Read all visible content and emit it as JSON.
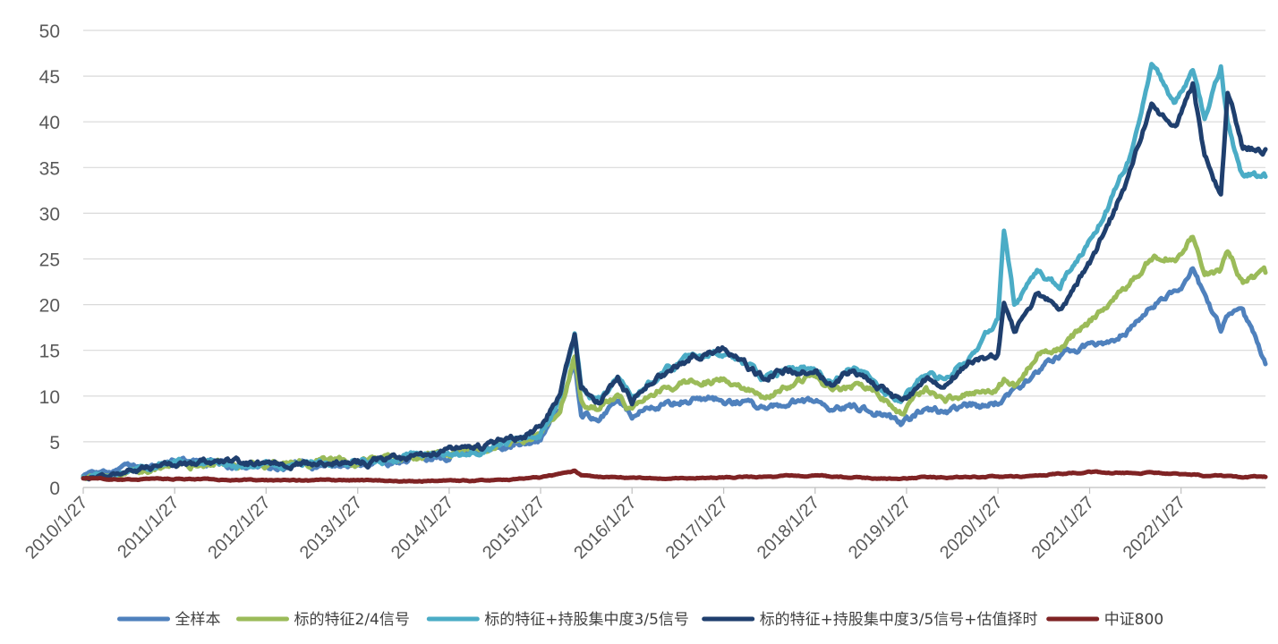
{
  "chart_data": {
    "type": "line",
    "title": "",
    "xlabel": "",
    "ylabel": "",
    "ylim": [
      0,
      50
    ],
    "y_ticks": [
      "0",
      "5",
      "10",
      "15",
      "20",
      "25",
      "30",
      "35",
      "40",
      "45",
      "50"
    ],
    "x_ticks": [
      "2010/1/27",
      "2011/1/27",
      "2012/1/27",
      "2013/1/27",
      "2014/1/27",
      "2015/1/27",
      "2016/1/27",
      "2017/1/27",
      "2018/1/27",
      "2019/1/27",
      "2020/1/27",
      "2021/1/27",
      "2022/1/27"
    ],
    "x_range": [
      "2010/1/27",
      "2022/12/30"
    ],
    "grid": "horizontal",
    "legend_position": "bottom",
    "x": [
      "2010/1/27",
      "2010/7/1",
      "2011/1/27",
      "2011/7/1",
      "2012/1/27",
      "2012/7/1",
      "2013/1/27",
      "2013/7/1",
      "2014/1/27",
      "2014/7/1",
      "2015/1/27",
      "2015/4/15",
      "2015/6/12",
      "2015/7/8",
      "2015/9/15",
      "2015/12/1",
      "2016/1/27",
      "2016/4/1",
      "2016/7/1",
      "2016/10/1",
      "2017/1/27",
      "2017/4/1",
      "2017/7/1",
      "2017/10/1",
      "2018/1/27",
      "2018/4/1",
      "2018/7/1",
      "2018/10/1",
      "2019/1/4",
      "2019/4/15",
      "2019/7/1",
      "2019/10/1",
      "2020/1/27",
      "2020/2/20",
      "2020/4/1",
      "2020/7/1",
      "2020/10/1",
      "2021/1/27",
      "2021/4/1",
      "2021/7/1",
      "2021/10/1",
      "2022/1/4",
      "2022/3/15",
      "2022/5/1",
      "2022/7/5",
      "2022/8/1",
      "2022/10/1",
      "2022/12/30"
    ],
    "series": [
      {
        "name": "全样本",
        "color": "#4f81bd",
        "values": [
          1.2,
          1.8,
          2.7,
          2.8,
          2.3,
          2.6,
          2.6,
          3.0,
          3.6,
          4.1,
          5.5,
          8.5,
          14.0,
          8.5,
          7.5,
          9.5,
          8.0,
          9.0,
          9.3,
          9.8,
          9.5,
          9.4,
          8.5,
          9.2,
          9.5,
          8.8,
          8.7,
          8.3,
          6.8,
          8.8,
          8.2,
          8.8,
          9.2,
          10.0,
          10.5,
          12.5,
          14.5,
          15.5,
          15.5,
          17.5,
          20.0,
          21.5,
          24.0,
          21.0,
          17.5,
          19.0,
          19.0,
          13.5
        ]
      },
      {
        "name": "标的特征2/4信号",
        "color": "#9bbb59",
        "values": [
          1.1,
          1.6,
          2.5,
          2.6,
          2.3,
          2.7,
          2.7,
          3.1,
          3.8,
          4.2,
          5.8,
          9.0,
          14.5,
          9.5,
          8.5,
          10.5,
          8.5,
          10.0,
          11.0,
          11.5,
          11.8,
          11.0,
          10.0,
          11.0,
          12.3,
          10.5,
          11.0,
          10.5,
          8.2,
          10.5,
          9.5,
          10.3,
          10.5,
          11.5,
          11.0,
          14.5,
          15.5,
          18.0,
          19.5,
          22.0,
          25.0,
          25.0,
          27.5,
          23.0,
          23.5,
          25.5,
          22.5,
          23.5
        ]
      },
      {
        "name": "标的特征+持股集中度3/5信号",
        "color": "#4bacc6",
        "values": [
          1.1,
          1.7,
          2.6,
          2.8,
          2.4,
          2.8,
          2.8,
          3.2,
          4.0,
          4.4,
          6.0,
          10.0,
          16.5,
          10.5,
          9.5,
          12.0,
          9.5,
          11.5,
          13.0,
          14.5,
          15.0,
          14.0,
          12.0,
          13.0,
          13.0,
          11.5,
          13.5,
          11.5,
          9.5,
          12.5,
          12.0,
          14.5,
          18.5,
          28.0,
          20.0,
          24.0,
          22.0,
          27.0,
          30.0,
          36.0,
          46.0,
          42.0,
          46.0,
          40.0,
          46.0,
          40.0,
          34.0,
          34.0
        ]
      },
      {
        "name": "标的特征+持股集中度3/5信号+估值择时",
        "color": "#1f3f6e",
        "values": [
          1.0,
          1.6,
          2.5,
          2.8,
          2.4,
          2.8,
          2.8,
          3.2,
          4.0,
          4.5,
          6.5,
          10.5,
          16.5,
          10.5,
          9.5,
          12.0,
          9.5,
          11.5,
          13.0,
          14.5,
          15.0,
          14.0,
          12.0,
          13.0,
          12.5,
          11.0,
          13.0,
          11.0,
          9.3,
          12.0,
          11.5,
          13.5,
          14.5,
          20.0,
          17.0,
          21.0,
          19.5,
          24.5,
          28.0,
          34.0,
          42.0,
          39.0,
          44.0,
          36.0,
          32.0,
          43.0,
          37.0,
          37.0
        ]
      },
      {
        "name": "中证800",
        "color": "#7f2324",
        "values": [
          1.0,
          0.9,
          0.95,
          0.85,
          0.8,
          0.75,
          0.78,
          0.72,
          0.72,
          0.75,
          1.05,
          1.45,
          1.8,
          1.3,
          1.05,
          1.15,
          1.0,
          1.02,
          1.05,
          1.1,
          1.12,
          1.15,
          1.2,
          1.25,
          1.3,
          1.2,
          1.12,
          1.0,
          0.95,
          1.15,
          1.1,
          1.15,
          1.2,
          1.15,
          1.1,
          1.35,
          1.5,
          1.7,
          1.6,
          1.6,
          1.6,
          1.5,
          1.45,
          1.3,
          1.35,
          1.25,
          1.15,
          1.15
        ]
      }
    ]
  }
}
